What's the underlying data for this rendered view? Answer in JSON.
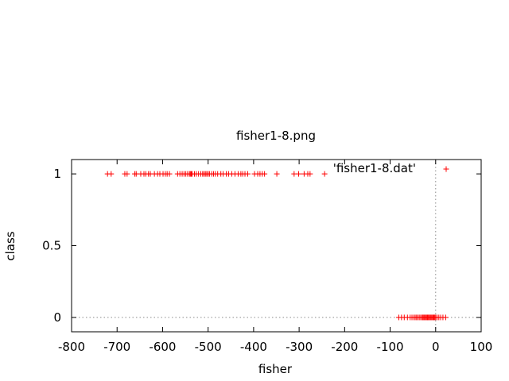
{
  "chart_data": {
    "type": "scatter",
    "title": "fisher1-8.png",
    "xlabel": "fisher",
    "ylabel": "class",
    "xlim": [
      -800,
      100
    ],
    "ylim": [
      -0.1,
      1.1
    ],
    "xticks": [
      -800,
      -700,
      -600,
      -500,
      -400,
      -300,
      -200,
      -100,
      0,
      100
    ],
    "yticks": [
      0,
      0.5,
      1
    ],
    "xtick_labels": [
      "-800",
      "-700",
      "-600",
      "-500",
      "-400",
      "-300",
      "-200",
      "-100",
      "0",
      "100"
    ],
    "ytick_labels": [
      "0",
      "0.5",
      "1"
    ],
    "zero_axes_dotted": true,
    "grid": false,
    "legend_position": "top-right",
    "series": [
      {
        "name": "'fisher1-8.dat'",
        "color": "#ff0000",
        "marker": "plus",
        "points": [
          [
            -721,
            1
          ],
          [
            -713,
            1
          ],
          [
            -683,
            1
          ],
          [
            -678,
            1
          ],
          [
            -661,
            1
          ],
          [
            -658,
            1
          ],
          [
            -648,
            1
          ],
          [
            -641,
            1
          ],
          [
            -637,
            1
          ],
          [
            -631,
            1
          ],
          [
            -627,
            1
          ],
          [
            -618,
            1
          ],
          [
            -611,
            1
          ],
          [
            -606,
            1
          ],
          [
            -599,
            1
          ],
          [
            -594,
            1
          ],
          [
            -590,
            1
          ],
          [
            -585,
            1
          ],
          [
            -567,
            1
          ],
          [
            -562,
            1
          ],
          [
            -557,
            1
          ],
          [
            -553,
            1
          ],
          [
            -549,
            1
          ],
          [
            -545,
            1
          ],
          [
            -541,
            1
          ],
          [
            -539,
            1
          ],
          [
            -537,
            1
          ],
          [
            -535,
            1
          ],
          [
            -530,
            1
          ],
          [
            -526,
            1
          ],
          [
            -521,
            1
          ],
          [
            -516,
            1
          ],
          [
            -512,
            1
          ],
          [
            -509,
            1
          ],
          [
            -506,
            1
          ],
          [
            -503,
            1
          ],
          [
            -500,
            1
          ],
          [
            -497,
            1
          ],
          [
            -492,
            1
          ],
          [
            -488,
            1
          ],
          [
            -484,
            1
          ],
          [
            -479,
            1
          ],
          [
            -472,
            1
          ],
          [
            -467,
            1
          ],
          [
            -460,
            1
          ],
          [
            -455,
            1
          ],
          [
            -448,
            1
          ],
          [
            -441,
            1
          ],
          [
            -434,
            1
          ],
          [
            -428,
            1
          ],
          [
            -424,
            1
          ],
          [
            -419,
            1
          ],
          [
            -413,
            1
          ],
          [
            -398,
            1
          ],
          [
            -391,
            1
          ],
          [
            -386,
            1
          ],
          [
            -381,
            1
          ],
          [
            -376,
            1
          ],
          [
            -349,
            1
          ],
          [
            -311,
            1
          ],
          [
            -301,
            1
          ],
          [
            -289,
            1
          ],
          [
            -281,
            1
          ],
          [
            -276,
            1
          ],
          [
            -244,
            1
          ],
          [
            -81,
            0
          ],
          [
            -75,
            0
          ],
          [
            -69,
            0
          ],
          [
            -62,
            0
          ],
          [
            -56,
            0
          ],
          [
            -52,
            0
          ],
          [
            -48,
            0
          ],
          [
            -45,
            0
          ],
          [
            -42,
            0
          ],
          [
            -39,
            0
          ],
          [
            -36,
            0
          ],
          [
            -33,
            0
          ],
          [
            -30,
            0
          ],
          [
            -28,
            0
          ],
          [
            -26,
            0
          ],
          [
            -24,
            0
          ],
          [
            -22,
            0
          ],
          [
            -20,
            0
          ],
          [
            -18,
            0
          ],
          [
            -16,
            0
          ],
          [
            -14,
            0
          ],
          [
            -12,
            0
          ],
          [
            -10,
            0
          ],
          [
            -8,
            0
          ],
          [
            -6,
            0
          ],
          [
            -4,
            0
          ],
          [
            -2,
            0
          ],
          [
            0,
            0
          ],
          [
            3,
            0
          ],
          [
            7,
            0
          ],
          [
            11,
            0
          ],
          [
            16,
            0
          ],
          [
            22,
            0
          ]
        ]
      }
    ]
  }
}
